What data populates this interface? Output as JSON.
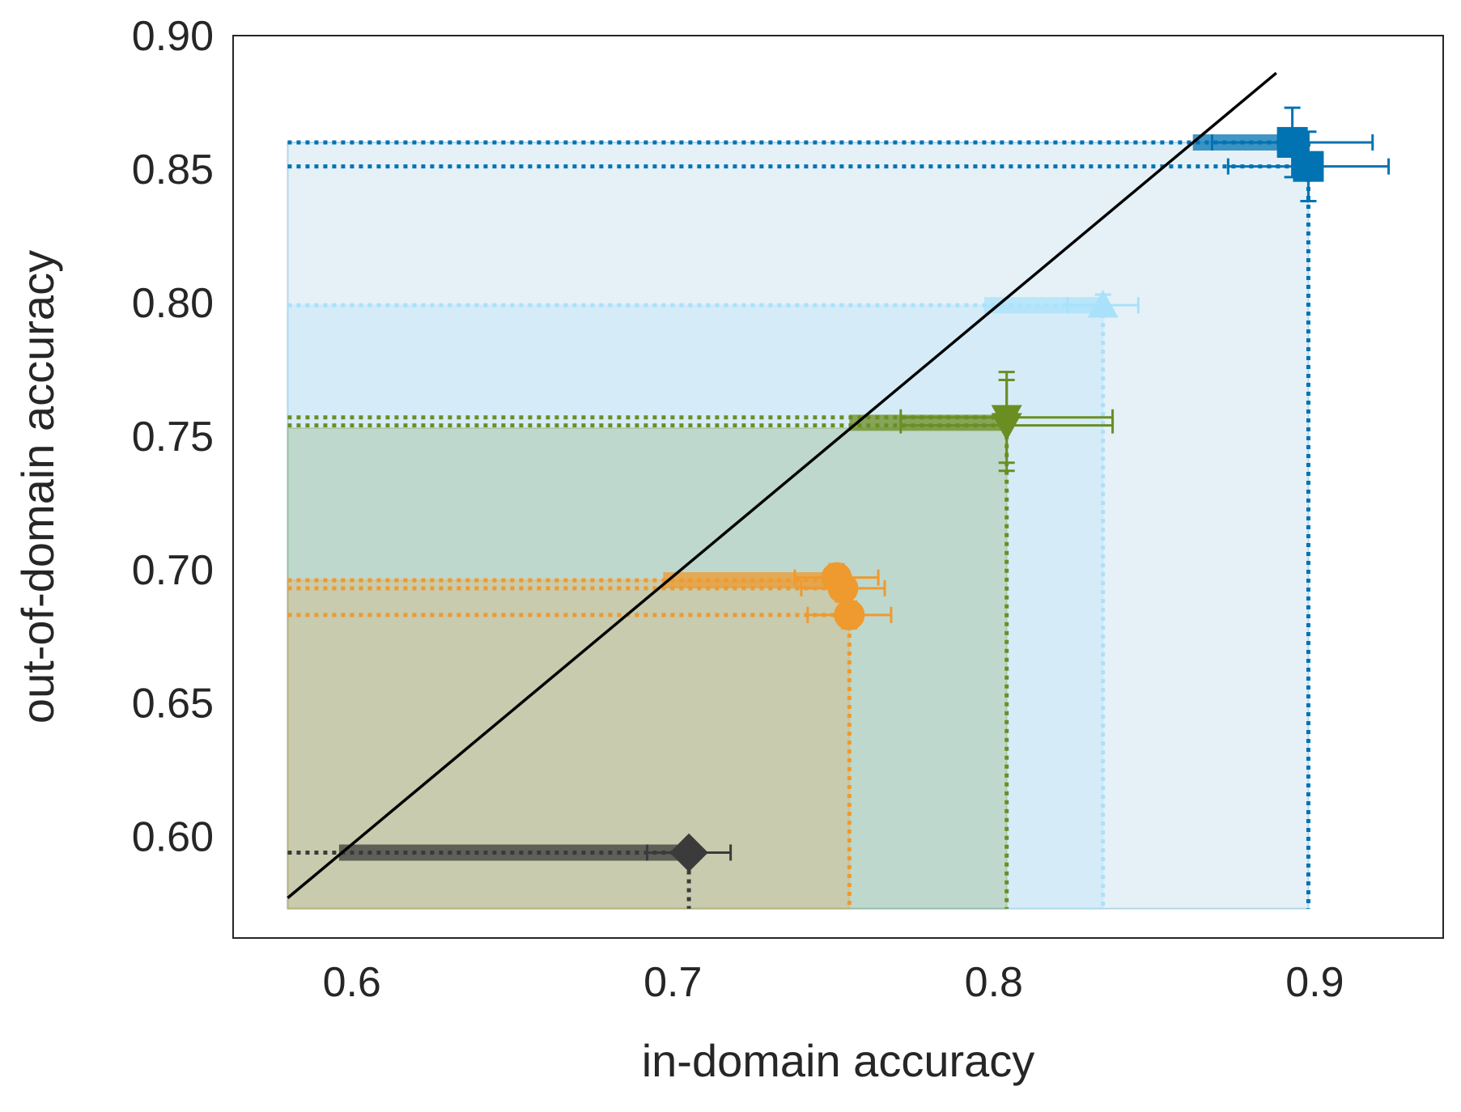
{
  "chart_data": {
    "type": "scatter",
    "title": "",
    "xlabel": "in-domain accuracy",
    "ylabel": "out-of-domain accuracy",
    "xlim": [
      0.563,
      0.94
    ],
    "ylim": [
      0.562,
      0.9
    ],
    "x_ticks": [
      0.6,
      0.7,
      0.8,
      0.9
    ],
    "x_tick_labels": [
      "0.6",
      "0.7",
      "0.8",
      "0.9"
    ],
    "y_ticks": [
      0.6,
      0.65,
      0.7,
      0.75,
      0.8,
      0.85,
      0.9
    ],
    "y_tick_labels": [
      "0.60",
      "0.65",
      "0.70",
      "0.75",
      "0.80",
      "0.85",
      "0.90"
    ],
    "grid": false,
    "legend": "none",
    "region_origin": [
      0.58,
      0.573
    ],
    "diagonal_line": {
      "x": [
        0.58,
        0.888
      ],
      "y": [
        0.577,
        0.886
      ],
      "color": "#000000"
    },
    "series": [
      {
        "color": "#0173b2",
        "marker": "square",
        "region": [
          0.58,
          0.573,
          0.898,
          0.86
        ],
        "region_alpha": 0.1,
        "band": {
          "x": [
            0.862,
            0.895
          ],
          "y": 0.86
        },
        "points": [
          {
            "x": 0.893,
            "y": 0.86,
            "xerr": 0.025,
            "yerr": 0.013
          },
          {
            "x": 0.898,
            "y": 0.851,
            "xerr": 0.025,
            "yerr": 0.013
          }
        ],
        "guide": {
          "x": 0.898,
          "y": 0.86
        }
      },
      {
        "color": "#a9e1fb",
        "marker": "triangle-up",
        "region": [
          0.58,
          0.573,
          0.834,
          0.799
        ],
        "region_alpha": 0.25,
        "band": {
          "x": [
            0.797,
            0.834
          ],
          "y": 0.799
        },
        "points": [
          {
            "x": 0.834,
            "y": 0.799,
            "xerr": 0.011,
            "yerr": 0.004
          }
        ],
        "guide": {
          "x": 0.834,
          "y": 0.799
        }
      },
      {
        "color": "#6b8e23",
        "marker": "triangle-down",
        "region": [
          0.58,
          0.573,
          0.804,
          0.753
        ],
        "region_alpha": 0.2,
        "band": {
          "x": [
            0.755,
            0.804
          ],
          "y": 0.755
        },
        "points": [
          {
            "x": 0.804,
            "y": 0.757,
            "xerr": 0.033,
            "yerr": 0.017
          },
          {
            "x": 0.804,
            "y": 0.754,
            "xerr": 0.033,
            "yerr": 0.017
          }
        ],
        "guide": {
          "x": 0.804,
          "y": 0.757
        }
      },
      {
        "color": "#ee9a2f",
        "marker": "circle",
        "region": [
          0.58,
          0.573,
          0.755,
          0.696
        ],
        "region_alpha": 0.2,
        "band": {
          "x": [
            0.697,
            0.755
          ],
          "y": 0.696
        },
        "points": [
          {
            "x": 0.751,
            "y": 0.697,
            "xerr": 0.013,
            "yerr": 0.005
          },
          {
            "x": 0.753,
            "y": 0.693,
            "xerr": 0.013,
            "yerr": 0.005
          },
          {
            "x": 0.755,
            "y": 0.683,
            "xerr": 0.013,
            "yerr": 0.005
          }
        ],
        "guide": {
          "x": 0.755,
          "y": 0.696
        }
      },
      {
        "color": "#3b3b3b",
        "marker": "diamond",
        "region": null,
        "region_alpha": 0,
        "band": {
          "x": [
            0.596,
            0.705
          ],
          "y": 0.594
        },
        "points": [
          {
            "x": 0.705,
            "y": 0.594,
            "xerr": 0.013,
            "yerr": 0.003
          }
        ],
        "guide": {
          "x": 0.705,
          "y": 0.594
        }
      }
    ]
  }
}
